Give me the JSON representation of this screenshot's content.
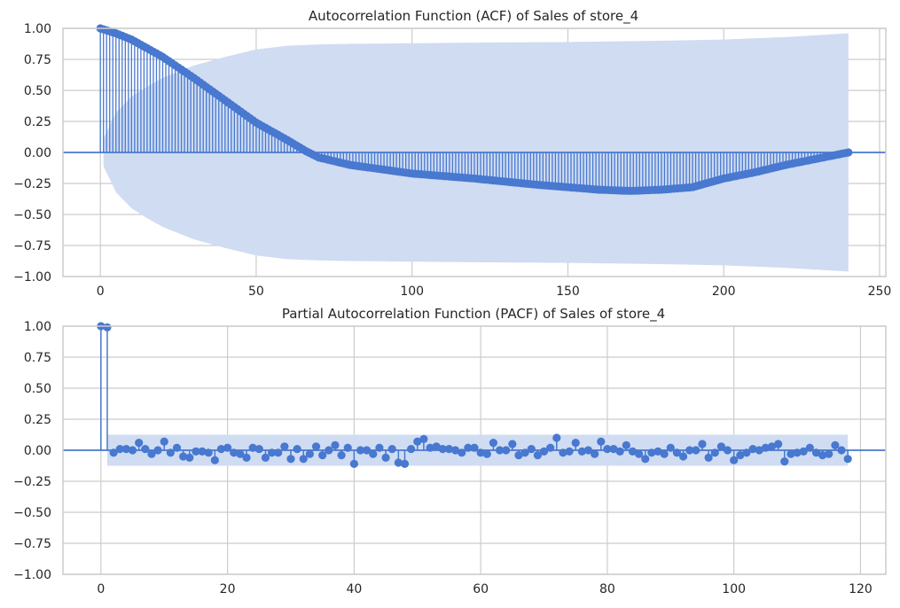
{
  "theme": {
    "grid_color": "#cccccc",
    "axes_edge_color": "#cccccc",
    "stem_color": "#4878cf",
    "band_color": "#cfdcf2",
    "text_color": "#262626"
  },
  "chart_data": [
    {
      "type": "stem",
      "title": "Autocorrelation Function (ACF) of Sales of store_4",
      "xlabel": "",
      "ylabel": "",
      "xlim": [
        -12,
        252
      ],
      "ylim": [
        -1.0,
        1.0
      ],
      "xticks": [
        0,
        50,
        100,
        150,
        200,
        250
      ],
      "xtick_labels": [
        "0",
        "50",
        "100",
        "150",
        "200",
        "250"
      ],
      "yticks": [
        1.0,
        0.75,
        0.5,
        0.25,
        0.0,
        -0.25,
        -0.5,
        -0.75,
        -1.0
      ],
      "ytick_labels": [
        "1.00",
        "0.75",
        "0.50",
        "0.25",
        "0.00",
        "−0.25",
        "−0.50",
        "−0.75",
        "−1.00"
      ],
      "grid": true,
      "confidence_band": {
        "x": [
          1,
          5,
          10,
          15,
          20,
          25,
          30,
          40,
          50,
          60,
          70,
          80,
          100,
          120,
          150,
          180,
          200,
          220,
          240
        ],
        "upper": [
          0.11,
          0.32,
          0.45,
          0.53,
          0.6,
          0.65,
          0.7,
          0.77,
          0.83,
          0.86,
          0.87,
          0.875,
          0.88,
          0.885,
          0.89,
          0.9,
          0.91,
          0.93,
          0.96
        ]
      },
      "acf_anchors": {
        "lags": [
          0,
          5,
          10,
          20,
          30,
          40,
          50,
          60,
          66,
          70,
          80,
          100,
          120,
          140,
          150,
          160,
          170,
          180,
          190,
          200,
          210,
          220,
          230,
          240
        ],
        "values": [
          1.0,
          0.96,
          0.91,
          0.77,
          0.6,
          0.42,
          0.24,
          0.1,
          0.01,
          -0.04,
          -0.1,
          -0.17,
          -0.21,
          -0.26,
          -0.28,
          -0.3,
          -0.31,
          -0.3,
          -0.28,
          -0.21,
          -0.16,
          -0.1,
          -0.05,
          0.0
        ]
      }
    },
    {
      "type": "stem",
      "title": "Partial Autocorrelation Function (PACF) of Sales of store_4",
      "xlabel": "",
      "ylabel": "",
      "xlim": [
        -6,
        124
      ],
      "ylim": [
        -1.0,
        1.0
      ],
      "xticks": [
        0,
        20,
        40,
        60,
        80,
        100,
        120
      ],
      "xtick_labels": [
        "0",
        "20",
        "40",
        "60",
        "80",
        "100",
        "120"
      ],
      "yticks": [
        1.0,
        0.75,
        0.5,
        0.25,
        0.0,
        -0.25,
        -0.5,
        -0.75,
        -1.0
      ],
      "ytick_labels": [
        "1.00",
        "0.75",
        "0.50",
        "0.25",
        "0.00",
        "−0.25",
        "−0.50",
        "−0.75",
        "−1.00"
      ],
      "grid": true,
      "confidence_band": {
        "x": [
          1,
          118
        ],
        "upper": [
          0.125,
          0.125
        ]
      },
      "lags_start": 0,
      "values": [
        1.0,
        0.99,
        -0.02,
        0.01,
        0.01,
        0.0,
        0.06,
        0.01,
        -0.03,
        0.0,
        0.07,
        -0.02,
        0.02,
        -0.05,
        -0.06,
        -0.01,
        -0.01,
        -0.02,
        -0.08,
        0.01,
        0.02,
        -0.02,
        -0.03,
        -0.06,
        0.02,
        0.01,
        -0.06,
        -0.02,
        -0.02,
        0.03,
        -0.07,
        0.01,
        -0.07,
        -0.03,
        0.03,
        -0.04,
        0.0,
        0.04,
        -0.04,
        0.02,
        -0.11,
        0.0,
        0.0,
        -0.03,
        0.02,
        -0.06,
        0.01,
        -0.1,
        -0.11,
        0.01,
        0.07,
        0.09,
        0.02,
        0.03,
        0.01,
        0.01,
        0.0,
        -0.02,
        0.02,
        0.02,
        -0.02,
        -0.03,
        0.06,
        0.0,
        0.0,
        0.05,
        -0.04,
        -0.02,
        0.01,
        -0.04,
        -0.01,
        0.02,
        0.1,
        -0.02,
        -0.01,
        0.06,
        -0.01,
        0.0,
        -0.03,
        0.07,
        0.01,
        0.01,
        -0.01,
        0.04,
        -0.01,
        -0.03,
        -0.07,
        -0.02,
        -0.01,
        -0.03,
        0.02,
        -0.02,
        -0.05,
        0.0,
        0.0,
        0.05,
        -0.06,
        -0.02,
        0.03,
        0.0,
        -0.08,
        -0.04,
        -0.02,
        0.01,
        0.0,
        0.02,
        0.03,
        0.05,
        -0.09,
        -0.03,
        -0.02,
        -0.01,
        0.02,
        -0.02,
        -0.04,
        -0.03,
        0.04,
        0.0,
        -0.07
      ]
    }
  ]
}
